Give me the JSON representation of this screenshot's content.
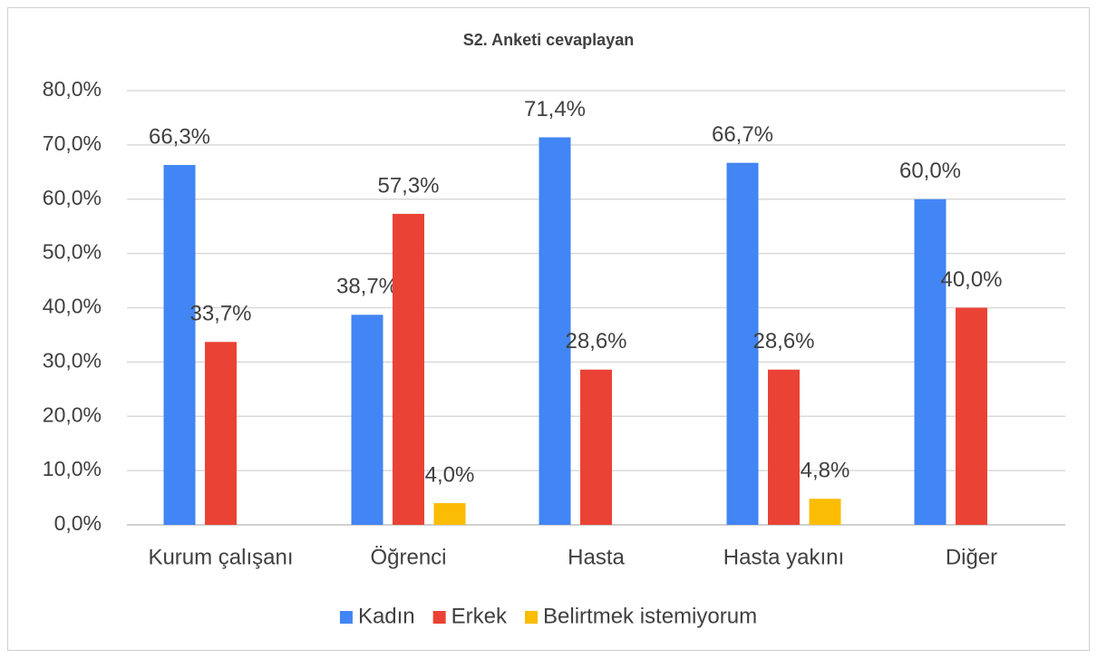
{
  "chart_data": {
    "type": "bar",
    "title": "S2. Anketi cevaplayan",
    "categories": [
      "Kurum çalışanı",
      "Öğrenci",
      "Hasta",
      "Hasta yakını",
      "Diğer"
    ],
    "series": [
      {
        "name": "Kadın",
        "color": "#4285f4",
        "values": [
          66.3,
          38.7,
          71.4,
          66.7,
          60.0
        ],
        "value_labels": [
          "66,3%",
          "38,7%",
          "71,4%",
          "66,7%",
          "60,0%"
        ]
      },
      {
        "name": "Erkek",
        "color": "#ea4335",
        "values": [
          33.7,
          57.3,
          28.6,
          28.6,
          40.0
        ],
        "value_labels": [
          "33,7%",
          "57,3%",
          "28,6%",
          "28,6%",
          "40,0%"
        ]
      },
      {
        "name": "Belirtmek istemiyorum",
        "color": "#fbbc04",
        "values": [
          null,
          4.0,
          null,
          4.8,
          null
        ],
        "value_labels": [
          null,
          "4,0%",
          null,
          "4,8%",
          null
        ]
      }
    ],
    "ylim": [
      0,
      80
    ],
    "yticks": [
      {
        "value": 0,
        "label": "0,0%"
      },
      {
        "value": 10,
        "label": "10,0%"
      },
      {
        "value": 20,
        "label": "20,0%"
      },
      {
        "value": 30,
        "label": "30,0%"
      },
      {
        "value": 40,
        "label": "40,0%"
      },
      {
        "value": 50,
        "label": "50,0%"
      },
      {
        "value": 60,
        "label": "60,0%"
      },
      {
        "value": 70,
        "label": "70,0%"
      },
      {
        "value": 80,
        "label": "80,0%"
      }
    ],
    "grid": true,
    "legend": "bottom"
  }
}
